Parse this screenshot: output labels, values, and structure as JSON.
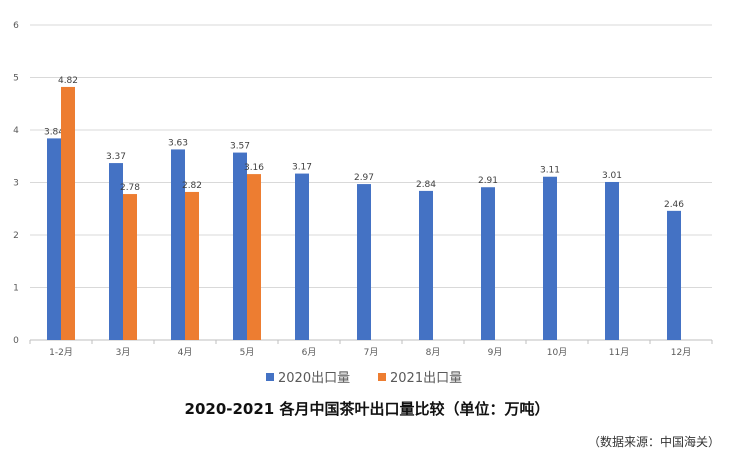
{
  "chart_data": {
    "type": "bar",
    "title": "2020-2021 各月中国茶叶出口量比较（单位：万吨）",
    "source": "（数据来源：中国海关）",
    "categories": [
      "1-2月",
      "3月",
      "4月",
      "5月",
      "6月",
      "7月",
      "8月",
      "9月",
      "10月",
      "11月",
      "12月"
    ],
    "series": [
      {
        "name": "2020出口量",
        "color": "#4472C4",
        "values": [
          3.84,
          3.37,
          3.63,
          3.57,
          3.17,
          2.97,
          2.84,
          2.91,
          3.11,
          3.01,
          2.46
        ],
        "labels": [
          "3.84",
          "3.37",
          "3.63",
          "3.57",
          "3.17",
          "2.97",
          "2.84",
          "2.91",
          "3.11",
          "3.01",
          "2.46"
        ]
      },
      {
        "name": "2021出口量",
        "color": "#ED7D31",
        "values": [
          4.82,
          2.78,
          2.82,
          3.16,
          null,
          null,
          null,
          null,
          null,
          null,
          null
        ],
        "labels": [
          "4.82",
          "2.78",
          "2.82",
          "3.16",
          null,
          null,
          null,
          null,
          null,
          null,
          null
        ]
      }
    ],
    "ylim": [
      0,
      6
    ],
    "yticks": [
      "0",
      "1",
      "2",
      "3",
      "4",
      "5",
      "6"
    ],
    "grid": true,
    "legend_position": "bottom",
    "xlabel": "",
    "ylabel": ""
  }
}
